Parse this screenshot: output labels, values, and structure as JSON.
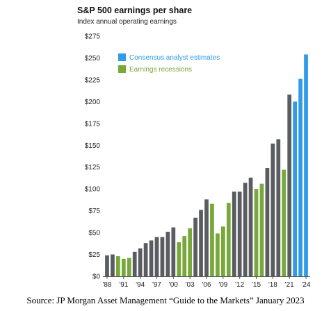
{
  "chart_data": {
    "type": "bar",
    "title": "S&P 500 earnings per share",
    "subtitle": "Index annual operating earnings",
    "xlabel": "",
    "ylabel": "",
    "ylim": [
      0,
      275
    ],
    "yticks": [
      "$0",
      "$25",
      "$50",
      "$75",
      "$100",
      "$125",
      "$150",
      "$175",
      "$200",
      "$225",
      "$250",
      "$275"
    ],
    "x_tick_labels": [
      "'88",
      "'91",
      "'94",
      "'97",
      "'00",
      "'03",
      "'06",
      "'09",
      "'12",
      "'15",
      "'18",
      "'21",
      "'24"
    ],
    "x_tick_years": [
      1988,
      1991,
      1994,
      1997,
      2000,
      2003,
      2006,
      2009,
      2012,
      2015,
      2018,
      2021,
      2024
    ],
    "grid": false,
    "legend_position": "top-left",
    "colors": {
      "actual": "#595c61",
      "estimate": "#2f9ce8",
      "recession": "#79a83a"
    },
    "legend": [
      {
        "label": "Consensus analyst estimates",
        "series": "estimate"
      },
      {
        "label": "Earnings recessions",
        "series": "recession"
      }
    ],
    "years": [
      1988,
      1989,
      1990,
      1991,
      1992,
      1993,
      1994,
      1995,
      1996,
      1997,
      1998,
      1999,
      2000,
      2001,
      2002,
      2003,
      2004,
      2005,
      2006,
      2007,
      2008,
      2009,
      2010,
      2011,
      2012,
      2013,
      2014,
      2015,
      2016,
      2017,
      2018,
      2019,
      2020,
      2021,
      2022,
      2023,
      2024
    ],
    "values": [
      24,
      25,
      23,
      20,
      21,
      28,
      32,
      38,
      41,
      45,
      45,
      51,
      56,
      39,
      46,
      55,
      67,
      76,
      88,
      83,
      49,
      57,
      84,
      97,
      97,
      107,
      113,
      100,
      106,
      124,
      152,
      157,
      122,
      208,
      200,
      226,
      254
    ],
    "categories_kind": [
      "actual",
      "actual",
      "recession",
      "recession",
      "recession",
      "actual",
      "actual",
      "actual",
      "actual",
      "actual",
      "actual",
      "actual",
      "actual",
      "recession",
      "recession",
      "recession",
      "actual",
      "actual",
      "actual",
      "recession",
      "recession",
      "recession",
      "recession",
      "actual",
      "actual",
      "actual",
      "actual",
      "recession",
      "recession",
      "actual",
      "actual",
      "actual",
      "recession",
      "actual",
      "estimate",
      "estimate",
      "estimate"
    ]
  },
  "source": "Source: JP Morgan Asset Management “Guide to the Markets” January 2023"
}
